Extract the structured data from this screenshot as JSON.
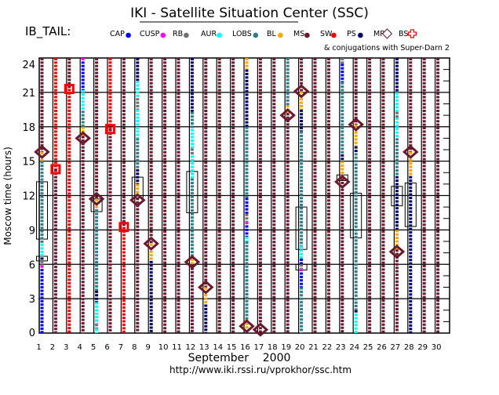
{
  "chart_data": {
    "type": "scatter",
    "title": "IKI - Satellite Situation Center (SSC)",
    "satellite_label": "IB_TAIL:",
    "note": "& conjugations with Super-Darn 2",
    "xlabel": "September    2000",
    "ylabel": "Moscow time (hours)",
    "url": "http://www.iki.rssi.ru/vprokhor/ssc.htm",
    "xlim": [
      1,
      30
    ],
    "ylim": [
      0,
      24
    ],
    "yticks": [
      0,
      3,
      6,
      9,
      12,
      15,
      18,
      21,
      24
    ],
    "xticks": [
      1,
      2,
      3,
      4,
      5,
      6,
      7,
      8,
      9,
      10,
      11,
      12,
      13,
      14,
      15,
      16,
      17,
      18,
      19,
      20,
      21,
      22,
      23,
      24,
      25,
      26,
      27,
      28,
      29,
      30
    ],
    "legend": [
      {
        "key": "CAP",
        "label": "CAP",
        "color": "#0000ff",
        "mark": "dot"
      },
      {
        "key": "CUSP",
        "label": "CUSP",
        "color": "#ff00ff",
        "mark": "dot"
      },
      {
        "key": "RB",
        "label": "RB",
        "color": "#707070",
        "mark": "dot"
      },
      {
        "key": "AUR",
        "label": "AUR",
        "color": "#00ffff",
        "mark": "dot"
      },
      {
        "key": "LOBS",
        "label": "LOBS",
        "color": "#2e7d8c",
        "mark": "dot"
      },
      {
        "key": "BL",
        "label": "BL",
        "color": "#ffa500",
        "mark": "dot"
      },
      {
        "key": "MS",
        "label": "MS",
        "color": "#6b1a2e",
        "mark": "dot"
      },
      {
        "key": "SW",
        "label": "SW",
        "color": "#ff0000",
        "mark": "dot"
      },
      {
        "key": "PS",
        "label": "PS",
        "color": "#000066",
        "mark": "dot"
      },
      {
        "key": "MP",
        "label": "MP",
        "color": "#6b1a2e",
        "mark": "diamond"
      },
      {
        "key": "BS",
        "label": "BS",
        "color": "#ff0000",
        "mark": "cross"
      }
    ],
    "days": [
      {
        "day": 1,
        "segments": [
          [
            24,
            15.8,
            "MS"
          ],
          [
            15.8,
            15,
            "BL"
          ],
          [
            15,
            7.8,
            "LOBS"
          ],
          [
            7.8,
            6.6,
            "AUR"
          ],
          [
            6.6,
            6.3,
            "PS"
          ],
          [
            6.3,
            5.9,
            "RB"
          ],
          [
            5.9,
            5.6,
            "CUSP"
          ],
          [
            5.6,
            0,
            "CAP"
          ]
        ],
        "MP": [
          15.8
        ],
        "BS": [],
        "boxes": [
          [
            13.2,
            8.2
          ],
          [
            6.7,
            6.3
          ]
        ]
      },
      {
        "day": 2,
        "segments": [
          [
            24,
            14.3,
            "SW"
          ],
          [
            14.3,
            0,
            "MS"
          ]
        ],
        "MP": [],
        "BS": [
          14.3
        ],
        "boxes": []
      },
      {
        "day": 3,
        "segments": [
          [
            24,
            21.3,
            "MS"
          ],
          [
            21.3,
            0,
            "SW"
          ]
        ],
        "MP": [],
        "BS": [
          21.3
        ],
        "boxes": []
      },
      {
        "day": 4,
        "segments": [
          [
            24,
            23.7,
            "CUSP"
          ],
          [
            23.7,
            21.2,
            "CAP"
          ],
          [
            21.2,
            19.4,
            "AUR"
          ],
          [
            19.4,
            18,
            "LOBS"
          ],
          [
            18,
            17.2,
            "BL"
          ],
          [
            17.2,
            0,
            "MS"
          ]
        ],
        "MP": [
          17.0
        ],
        "BS": [],
        "boxes": []
      },
      {
        "day": 5,
        "segments": [
          [
            24,
            11.7,
            "MS"
          ],
          [
            11.7,
            10.8,
            "BL"
          ],
          [
            10.8,
            3.7,
            "LOBS"
          ],
          [
            3.7,
            2.7,
            "PS"
          ],
          [
            2.7,
            0.8,
            "AUR"
          ],
          [
            0.8,
            0.4,
            "RB"
          ],
          [
            0.4,
            0,
            "AUR"
          ]
        ],
        "MP": [
          11.7
        ],
        "BS": [],
        "boxes": [
          [
            11.7,
            10.6
          ]
        ]
      },
      {
        "day": 6,
        "segments": [
          [
            24,
            17.8,
            "SW"
          ],
          [
            17.8,
            0,
            "MS"
          ]
        ],
        "MP": [],
        "BS": [
          17.8
        ],
        "boxes": []
      },
      {
        "day": 7,
        "segments": [
          [
            24,
            9.25,
            "MS"
          ],
          [
            9.25,
            0,
            "SW"
          ]
        ],
        "MP": [],
        "BS": [
          9.25
        ],
        "boxes": []
      },
      {
        "day": 8,
        "segments": [
          [
            24,
            22,
            "PS"
          ],
          [
            22,
            20.5,
            "AUR"
          ],
          [
            20.5,
            19.5,
            "RB"
          ],
          [
            19.5,
            17,
            "AUR"
          ],
          [
            17,
            14.3,
            "LOBS"
          ],
          [
            14.3,
            13,
            "PS"
          ],
          [
            13,
            11.8,
            "BL"
          ],
          [
            11.8,
            0,
            "MS"
          ]
        ],
        "MP": [
          11.6
        ],
        "BS": [],
        "boxes": [
          [
            13.6,
            11.8
          ]
        ]
      },
      {
        "day": 9,
        "segments": [
          [
            24,
            7.8,
            "MS"
          ],
          [
            7.8,
            6.3,
            "BL"
          ],
          [
            6.3,
            0,
            "PS"
          ]
        ],
        "MP": [
          7.8
        ],
        "BS": [],
        "boxes": []
      },
      {
        "day": 10,
        "segments": [
          [
            24,
            0,
            "MS"
          ]
        ],
        "MP": [],
        "BS": [],
        "boxes": []
      },
      {
        "day": 11,
        "segments": [
          [
            24,
            0,
            "MS"
          ]
        ],
        "MP": [],
        "BS": [],
        "boxes": []
      },
      {
        "day": 12,
        "segments": [
          [
            24,
            19.3,
            "PS"
          ],
          [
            19.3,
            17.8,
            "LOBS"
          ],
          [
            17.8,
            16.1,
            "AUR"
          ],
          [
            16.1,
            15.5,
            "RB"
          ],
          [
            15.5,
            13.5,
            "AUR"
          ],
          [
            13.5,
            6.5,
            "LOBS"
          ],
          [
            6.5,
            6.0,
            "BL"
          ],
          [
            6.0,
            0,
            "MS"
          ]
        ],
        "MP": [
          6.2
        ],
        "BS": [],
        "boxes": [
          [
            14.1,
            10.5
          ]
        ]
      },
      {
        "day": 13,
        "segments": [
          [
            24,
            4.0,
            "MS"
          ],
          [
            4.0,
            2.5,
            "BL"
          ],
          [
            2.5,
            0,
            "PS"
          ]
        ],
        "MP": [
          4.0
        ],
        "BS": [],
        "boxes": []
      },
      {
        "day": 14,
        "segments": [
          [
            24,
            0,
            "MS"
          ]
        ],
        "MP": [],
        "BS": [],
        "boxes": []
      },
      {
        "day": 15,
        "segments": [
          [
            24,
            0,
            "MS"
          ]
        ],
        "MP": [],
        "BS": [],
        "boxes": []
      },
      {
        "day": 16,
        "segments": [
          [
            24,
            23,
            "BL"
          ],
          [
            23,
            18,
            "PS"
          ],
          [
            18,
            11.8,
            "LOBS"
          ],
          [
            11.8,
            10.4,
            "CAP"
          ],
          [
            10.4,
            9.7,
            "RB"
          ],
          [
            9.7,
            9.4,
            "CUSP"
          ],
          [
            9.4,
            8.4,
            "CAP"
          ],
          [
            8.4,
            8.0,
            "AUR"
          ],
          [
            8.0,
            1.2,
            "LOBS"
          ],
          [
            1.2,
            0.3,
            "BL"
          ]
        ],
        "MP": [
          0.6
        ],
        "BS": [],
        "boxes": []
      },
      {
        "day": 17,
        "segments": [
          [
            24,
            0,
            "MS"
          ]
        ],
        "MP": [
          0.3
        ],
        "BS": [],
        "boxes": []
      },
      {
        "day": 18,
        "segments": [
          [
            24,
            0,
            "MS"
          ]
        ],
        "MP": [],
        "BS": [],
        "boxes": []
      },
      {
        "day": 19,
        "segments": [
          [
            24,
            19.9,
            "LOBS"
          ],
          [
            19.9,
            19.2,
            "BL"
          ],
          [
            19.2,
            0,
            "MS"
          ]
        ],
        "MP": [
          19.0
        ],
        "BS": [],
        "boxes": []
      },
      {
        "day": 20,
        "segments": [
          [
            24,
            21.1,
            "MS"
          ],
          [
            21.1,
            19.5,
            "BL"
          ],
          [
            19.5,
            17.6,
            "PS"
          ],
          [
            17.6,
            7.6,
            "LOBS"
          ],
          [
            7.6,
            6.5,
            "AUR"
          ],
          [
            6.5,
            6.0,
            "CAP"
          ],
          [
            6.0,
            5.6,
            "RB"
          ],
          [
            5.6,
            5.3,
            "CUSP"
          ],
          [
            5.3,
            4.0,
            "CAP"
          ],
          [
            4.0,
            0,
            "LOBS"
          ]
        ],
        "MP": [
          21.1
        ],
        "BS": [],
        "boxes": [
          [
            11.0,
            7.3
          ],
          [
            6.0,
            5.5
          ]
        ]
      },
      {
        "day": 21,
        "segments": [
          [
            24,
            0,
            "MS"
          ]
        ],
        "MP": [],
        "BS": [],
        "boxes": []
      },
      {
        "day": 22,
        "segments": [
          [
            24,
            0,
            "MS"
          ]
        ],
        "MP": [],
        "BS": [],
        "boxes": []
      },
      {
        "day": 23,
        "segments": [
          [
            24,
            23.5,
            "RB"
          ],
          [
            23.5,
            21.9,
            "CAP"
          ],
          [
            21.9,
            15.6,
            "LOBS"
          ],
          [
            15.6,
            15.0,
            "PS"
          ],
          [
            15.0,
            13.5,
            "BL"
          ],
          [
            13.5,
            0,
            "MS"
          ]
        ],
        "MP": [
          13.2
        ],
        "BS": [],
        "boxes": [
          [
            13.8,
            13.3
          ]
        ]
      },
      {
        "day": 24,
        "segments": [
          [
            24,
            18.2,
            "MS"
          ],
          [
            18.2,
            16.3,
            "BL"
          ],
          [
            16.3,
            15.7,
            "PS"
          ],
          [
            15.7,
            2.0,
            "LOBS"
          ],
          [
            2.0,
            1.7,
            "PS"
          ],
          [
            1.7,
            0,
            "AUR"
          ]
        ],
        "MP": [
          18.2
        ],
        "BS": [],
        "boxes": [
          [
            12.2,
            8.3
          ]
        ]
      },
      {
        "day": 25,
        "segments": [
          [
            24,
            0,
            "MS"
          ]
        ],
        "MP": [],
        "BS": [],
        "boxes": []
      },
      {
        "day": 26,
        "segments": [
          [
            24,
            0,
            "MS"
          ]
        ],
        "MP": [],
        "BS": [],
        "boxes": []
      },
      {
        "day": 27,
        "segments": [
          [
            24,
            21,
            "PS"
          ],
          [
            21,
            19.3,
            "AUR"
          ],
          [
            19.3,
            18.8,
            "RB"
          ],
          [
            18.8,
            17,
            "AUR"
          ],
          [
            17,
            13.7,
            "LOBS"
          ],
          [
            13.7,
            9,
            "PS"
          ],
          [
            9,
            7.3,
            "BL"
          ],
          [
            7.3,
            0,
            "MS"
          ]
        ],
        "MP": [
          7.1
        ],
        "BS": [],
        "boxes": [
          [
            12.8,
            11.1
          ]
        ]
      },
      {
        "day": 28,
        "segments": [
          [
            24,
            15.8,
            "MS"
          ],
          [
            15.8,
            13.7,
            "BL"
          ],
          [
            13.7,
            0,
            "PS"
          ]
        ],
        "MP": [
          15.8
        ],
        "BS": [],
        "boxes": [
          [
            13.1,
            9.3
          ]
        ]
      },
      {
        "day": 29,
        "segments": [
          [
            24,
            0,
            "MS"
          ]
        ],
        "MP": [],
        "BS": [],
        "boxes": []
      },
      {
        "day": 30,
        "segments": [
          [
            24,
            0,
            "MS"
          ]
        ],
        "MP": [],
        "BS": [],
        "boxes": []
      }
    ]
  }
}
